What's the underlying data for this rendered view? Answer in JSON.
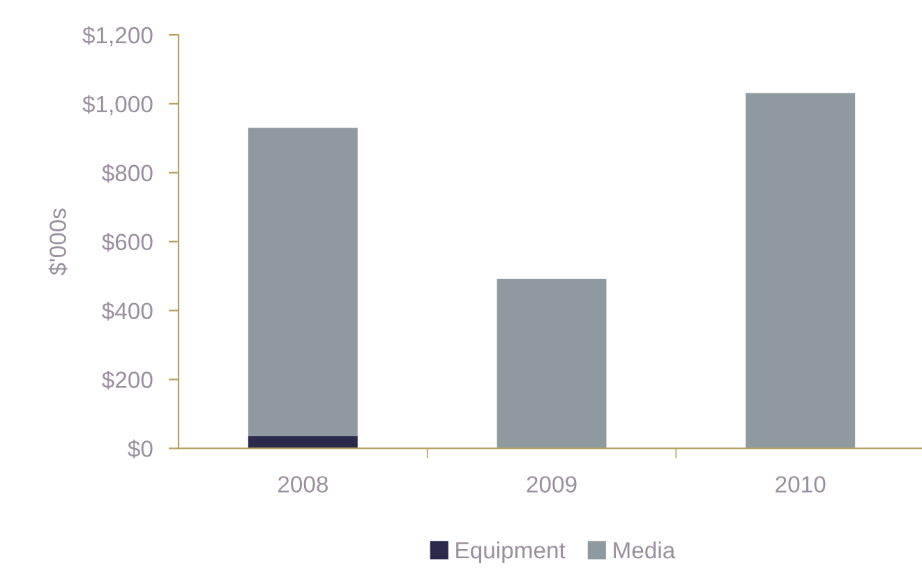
{
  "chart_data": {
    "type": "bar",
    "stacked": true,
    "ylabel": "$'000s",
    "categories": [
      "2008",
      "2009",
      "2010"
    ],
    "series": [
      {
        "name": "Equipment",
        "color": "#2b2a4c",
        "values": [
          35,
          0,
          0
        ]
      },
      {
        "name": "Media",
        "color": "#8e9a9f",
        "values": [
          895,
          492,
          1031
        ]
      }
    ],
    "ylim": [
      0,
      1200
    ],
    "yticks": [
      {
        "value": 0,
        "label": "$0"
      },
      {
        "value": 200,
        "label": "$200"
      },
      {
        "value": 400,
        "label": "$400"
      },
      {
        "value": 600,
        "label": "$600"
      },
      {
        "value": 800,
        "label": "$800"
      },
      {
        "value": 1000,
        "label": "$1,000"
      },
      {
        "value": 1200,
        "label": "$1,200"
      }
    ],
    "grid": false,
    "legend": "bottom"
  }
}
